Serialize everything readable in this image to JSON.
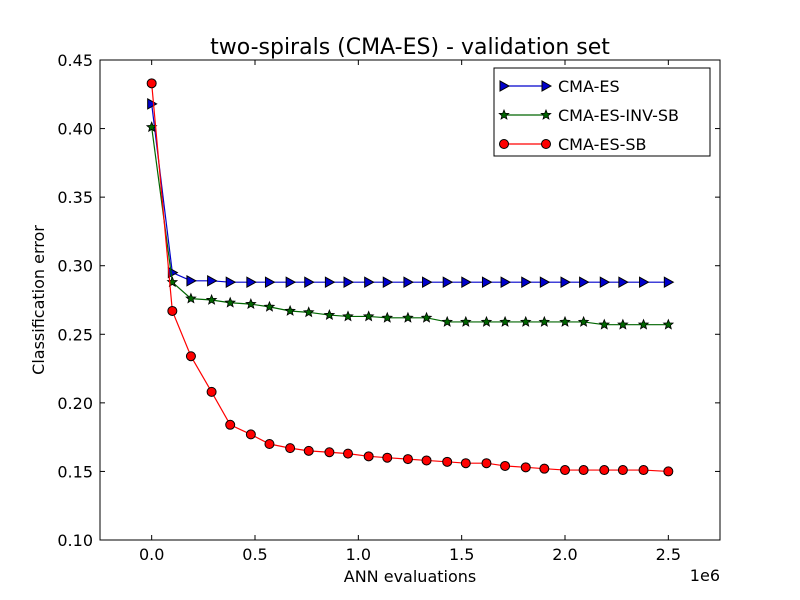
{
  "chart_data": {
    "type": "line",
    "title": "two-spirals (CMA-ES) - validation set",
    "xlabel": "ANN evaluations",
    "ylabel": "Classification error",
    "x_offset_label": "1e6",
    "xlim": [
      -0.25,
      2.75
    ],
    "ylim": [
      0.1,
      0.45
    ],
    "x_ticks": [
      0.0,
      0.5,
      1.0,
      1.5,
      2.0,
      2.5
    ],
    "x_tick_labels": [
      "0.0",
      "0.5",
      "1.0",
      "1.5",
      "2.0",
      "2.5"
    ],
    "y_ticks": [
      0.1,
      0.15,
      0.2,
      0.25,
      0.3,
      0.35,
      0.4,
      0.45
    ],
    "y_tick_labels": [
      "0.10",
      "0.15",
      "0.20",
      "0.25",
      "0.30",
      "0.35",
      "0.40",
      "0.45"
    ],
    "grid": false,
    "legend_position": "top-right",
    "x": [
      0.0,
      0.1,
      0.19,
      0.29,
      0.38,
      0.48,
      0.57,
      0.67,
      0.76,
      0.86,
      0.95,
      1.05,
      1.14,
      1.24,
      1.33,
      1.43,
      1.52,
      1.62,
      1.71,
      1.81,
      1.9,
      2.0,
      2.09,
      2.19,
      2.28,
      2.38,
      2.5
    ],
    "series": [
      {
        "name": "CMA-ES",
        "color": "#0000cc",
        "marker": "triangle-right",
        "values": [
          0.418,
          0.295,
          0.289,
          0.289,
          0.288,
          0.288,
          0.288,
          0.288,
          0.288,
          0.288,
          0.288,
          0.288,
          0.288,
          0.288,
          0.288,
          0.288,
          0.288,
          0.288,
          0.288,
          0.288,
          0.288,
          0.288,
          0.288,
          0.288,
          0.288,
          0.288,
          0.288
        ]
      },
      {
        "name": "CMA-ES-INV-SB",
        "color": "#006600",
        "marker": "star",
        "values": [
          0.401,
          0.288,
          0.276,
          0.275,
          0.273,
          0.272,
          0.27,
          0.267,
          0.266,
          0.264,
          0.263,
          0.263,
          0.262,
          0.262,
          0.262,
          0.259,
          0.259,
          0.259,
          0.259,
          0.259,
          0.259,
          0.259,
          0.259,
          0.257,
          0.257,
          0.257,
          0.257
        ]
      },
      {
        "name": "CMA-ES-SB",
        "color": "#ff0000",
        "marker": "circle",
        "values": [
          0.433,
          0.267,
          0.234,
          0.208,
          0.184,
          0.177,
          0.17,
          0.167,
          0.165,
          0.164,
          0.163,
          0.161,
          0.16,
          0.159,
          0.158,
          0.157,
          0.156,
          0.156,
          0.154,
          0.153,
          0.152,
          0.151,
          0.151,
          0.151,
          0.151,
          0.151,
          0.15
        ]
      }
    ]
  }
}
